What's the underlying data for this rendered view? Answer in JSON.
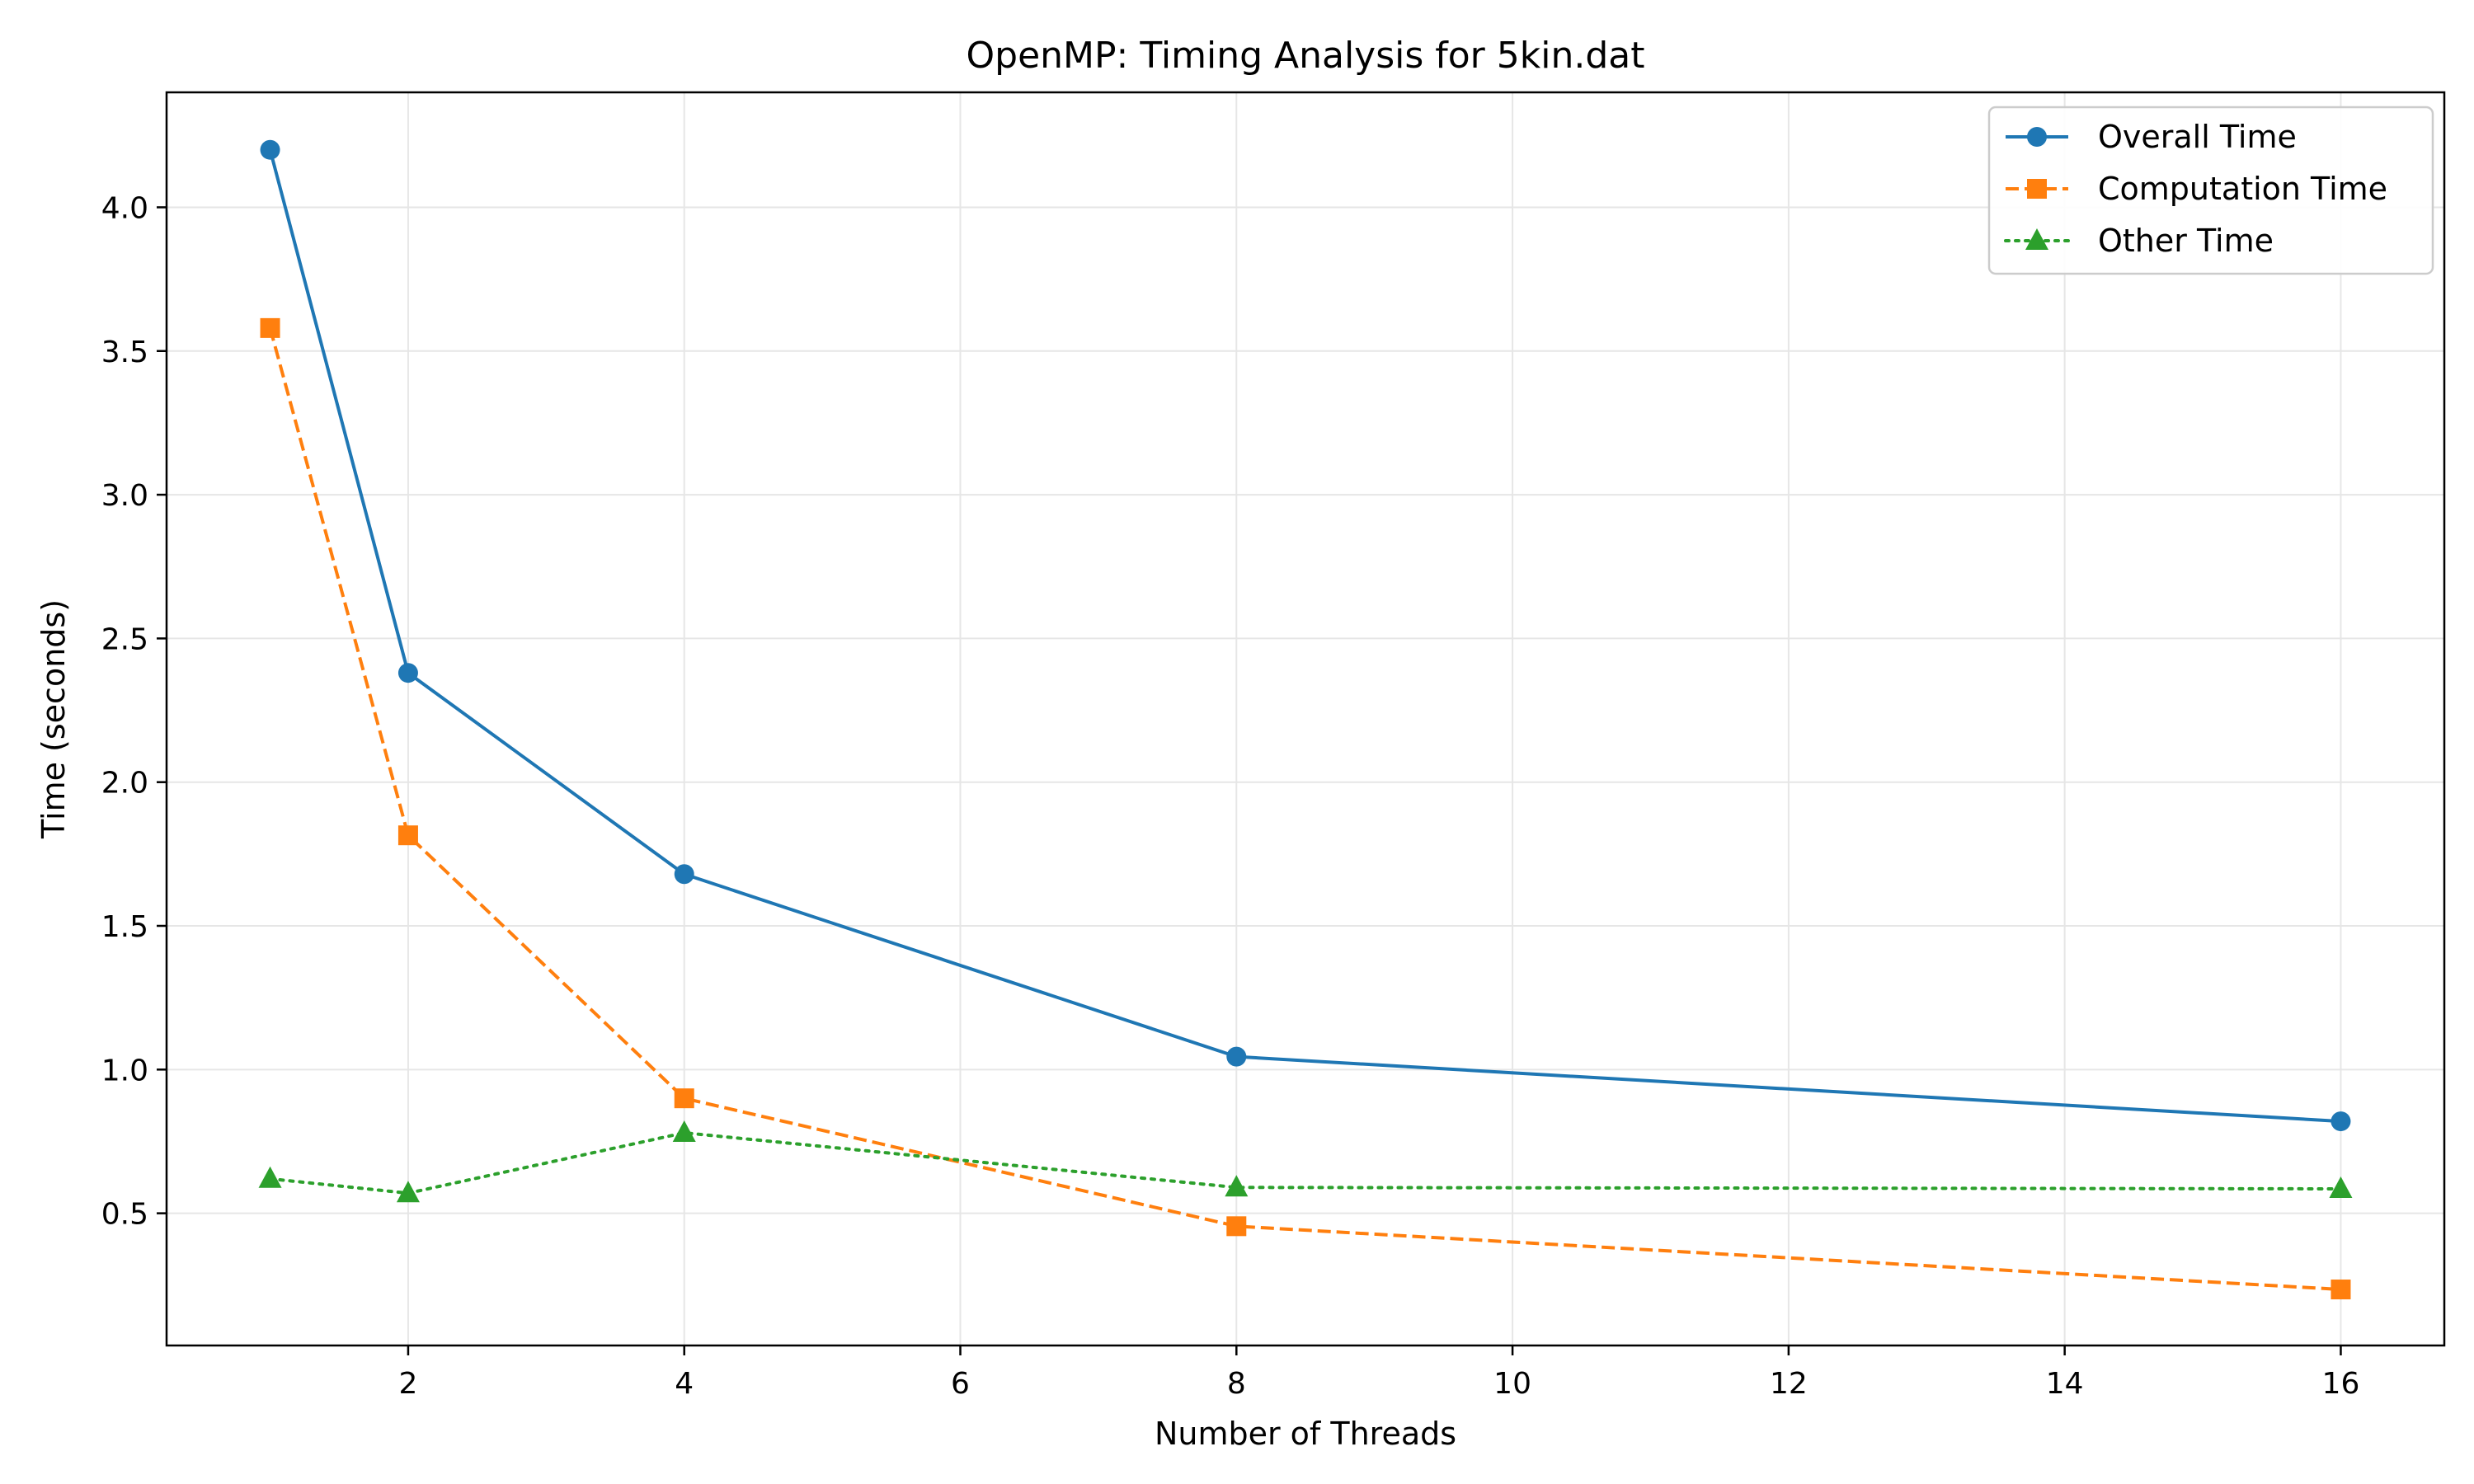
{
  "chart_data": {
    "type": "line",
    "title": "OpenMP: Timing Analysis for 5kin.dat",
    "xlabel": "Number of Threads",
    "ylabel": "Time (seconds)",
    "x": [
      1,
      2,
      4,
      8,
      16
    ],
    "xlim": [
      0.25,
      16.75
    ],
    "ylim": [
      0.04,
      4.4
    ],
    "xticks": [
      2,
      4,
      6,
      8,
      10,
      12,
      14,
      16
    ],
    "yticks": [
      0.5,
      1.0,
      1.5,
      2.0,
      2.5,
      3.0,
      3.5,
      4.0
    ],
    "grid": true,
    "legend_position": "top-right",
    "series": [
      {
        "name": "Overall Time",
        "values": [
          4.2,
          2.38,
          1.68,
          1.045,
          0.82
        ],
        "color": "#1f77b4",
        "marker": "circle",
        "linestyle": "solid"
      },
      {
        "name": "Computation Time",
        "values": [
          3.58,
          1.815,
          0.9,
          0.455,
          0.235
        ],
        "color": "#ff7f0e",
        "marker": "square",
        "linestyle": "dashed"
      },
      {
        "name": "Other Time",
        "values": [
          0.62,
          0.57,
          0.78,
          0.59,
          0.585
        ],
        "color": "#2ca02c",
        "marker": "triangle",
        "linestyle": "dotted"
      }
    ]
  }
}
